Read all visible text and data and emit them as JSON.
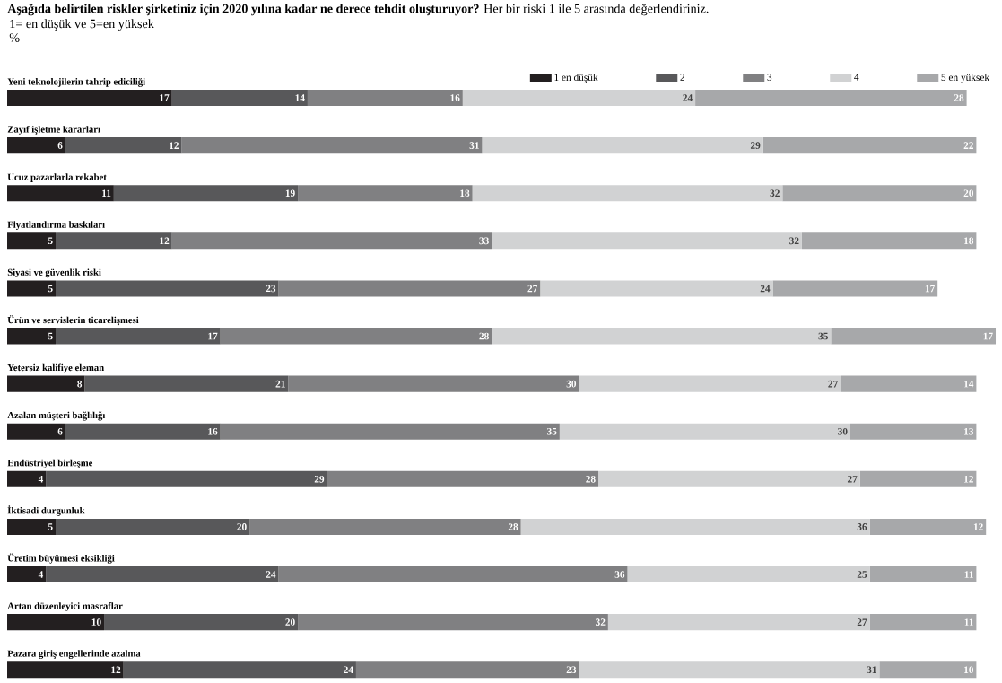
{
  "chart_data": {
    "type": "bar",
    "orientation": "horizontal",
    "stacked": true,
    "data_labels": true,
    "legend": "top right",
    "title": "**Aşağıda belirtilen riskler şirketiniz için 2020 yılına kadar ne derece tehdit oluşturuyor?** Her bir riski 1 ile 5 arasında değerlendiriniz.",
    "subtitle": "1= en düşük ve 5=en yüksek",
    "annotations": [
      "%"
    ],
    "categories": [
      "Yeni teknolojilerin tahrip ediciliği",
      "Zayıf işletme kararları",
      "Ucuz pazarlarla rekabet",
      "Fiyatlandırma baskıları",
      "Siyasi ve güvenlik riski",
      "Ürün ve servislerin ticarelişmesi",
      "Yetersiz kalifiye eleman",
      "Azalan müşteri bağlılığı",
      "Endüstriyel birleşme",
      "İktisadi durgunluk",
      "Üretim büyümesi eksikliği",
      "Artan düzenleyici masraflar",
      "Pazara giriş engellerinde azalma"
    ],
    "series": [
      {
        "name": "1 en düşük",
        "color": "#231f20",
        "values": [
          17,
          6,
          11,
          5,
          5,
          5,
          8,
          6,
          4,
          5,
          4,
          10,
          12
        ]
      },
      {
        "name": "2",
        "color": "#58585a",
        "values": [
          14,
          12,
          19,
          12,
          23,
          17,
          21,
          16,
          29,
          20,
          24,
          20,
          24
        ]
      },
      {
        "name": "3",
        "color": "#808082",
        "values": [
          16,
          31,
          18,
          33,
          27,
          28,
          30,
          35,
          28,
          28,
          36,
          32,
          23
        ]
      },
      {
        "name": "4",
        "color": "#d1d2d3",
        "values": [
          24,
          29,
          32,
          32,
          24,
          35,
          27,
          30,
          27,
          36,
          25,
          27,
          31
        ]
      },
      {
        "name": "5 en yüksek",
        "color": "#a7a8aa",
        "values": [
          28,
          22,
          20,
          18,
          17,
          17,
          14,
          13,
          12,
          12,
          11,
          11,
          10
        ]
      }
    ]
  }
}
